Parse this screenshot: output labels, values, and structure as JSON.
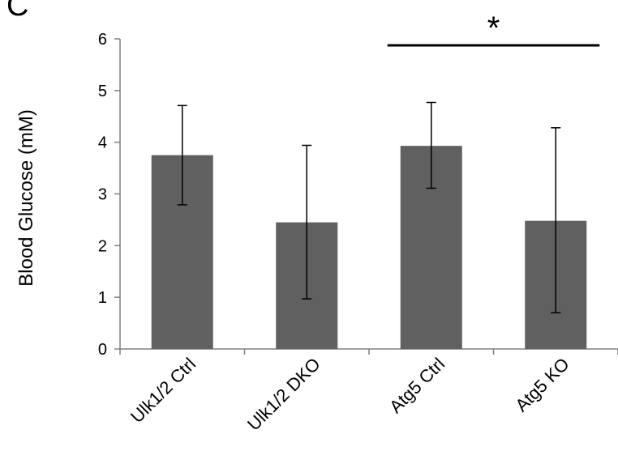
{
  "panel_label": "C",
  "chart_data": {
    "type": "bar",
    "categories": [
      "Ulk1/2 Ctrl",
      "Ulk1/2 DKO",
      "Atg5 Ctrl",
      "Atg5 KO"
    ],
    "values": [
      3.75,
      2.45,
      3.93,
      2.48
    ],
    "error_low": [
      2.79,
      0.97,
      3.11,
      0.7
    ],
    "error_high": [
      4.71,
      3.94,
      4.77,
      4.28
    ],
    "title": "",
    "xlabel": "",
    "ylabel": "Blood Glucose (mM)",
    "ylim": [
      0,
      6
    ],
    "yticks": [
      0,
      1,
      2,
      3,
      4,
      5,
      6
    ],
    "grid": false,
    "bar_color": "#606060",
    "significance": {
      "from": 2,
      "to": 3,
      "label": "*"
    }
  }
}
